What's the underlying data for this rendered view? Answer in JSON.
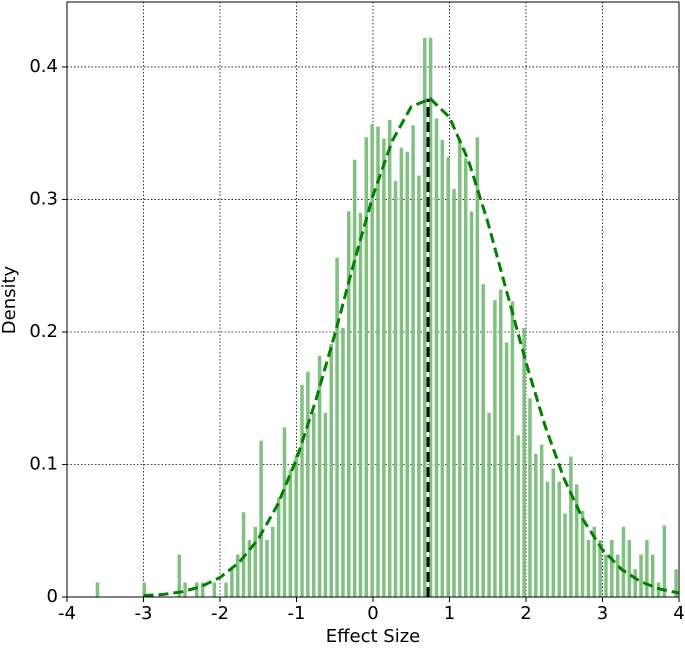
{
  "chart_data": {
    "type": "histogram",
    "xlabel": "Effect Size",
    "ylabel": "Density",
    "bins": [
      -3.64,
      -3.564,
      -3.487,
      -3.411,
      -3.334,
      -3.258,
      -3.182,
      -3.105,
      -3.029,
      -2.952,
      -2.876,
      -2.8,
      -2.723,
      -2.647,
      -2.57,
      -2.494,
      -2.418,
      -2.341,
      -2.265,
      -2.188,
      -2.112,
      -2.036,
      -1.959,
      -1.883,
      -1.806,
      -1.73,
      -1.654,
      -1.577,
      -1.501,
      -1.424,
      -1.348,
      -1.272,
      -1.195,
      -1.119,
      -1.042,
      -0.966,
      -0.89,
      -0.813,
      -0.737,
      -0.66,
      -0.584,
      -0.508,
      -0.431,
      -0.355,
      -0.278,
      -0.202,
      -0.126,
      -0.049,
      0.027,
      0.104,
      0.18,
      0.256,
      0.333,
      0.409,
      0.486,
      0.562,
      0.638,
      0.715,
      0.791,
      0.868,
      0.944,
      1.02,
      1.097,
      1.173,
      1.25,
      1.326,
      1.402,
      1.479,
      1.555,
      1.632,
      1.708,
      1.784,
      1.861,
      1.937,
      2.014,
      2.09,
      2.166,
      2.243,
      2.319,
      2.396,
      2.472,
      2.548,
      2.625,
      2.701,
      2.778,
      2.854,
      2.93,
      3.007,
      3.083,
      3.16,
      3.236,
      3.312,
      3.389,
      3.465,
      3.542,
      3.618,
      3.694,
      3.771,
      3.847,
      3.924,
      4.0
    ],
    "values": [
      0.011,
      0,
      0,
      0,
      0,
      0,
      0,
      0,
      0.011,
      0,
      0,
      0,
      0,
      0,
      0.032,
      0.011,
      0,
      0.011,
      0.011,
      0,
      0.011,
      0,
      0.011,
      0.021,
      0.032,
      0.064,
      0.043,
      0.053,
      0.118,
      0.043,
      0.053,
      0.075,
      0.128,
      0.096,
      0.107,
      0.16,
      0.17,
      0.139,
      0.182,
      0.139,
      0.191,
      0.256,
      0.203,
      0.291,
      0.33,
      0.29,
      0.347,
      0.357,
      0.355,
      0.346,
      0.36,
      0.314,
      0.339,
      0.336,
      0.356,
      0.318,
      0.422,
      0.422,
      0.361,
      0.345,
      0.332,
      0.308,
      0.346,
      0.331,
      0.291,
      0.347,
      0.236,
      0.139,
      0.224,
      0.232,
      0.192,
      0.223,
      0.122,
      0.203,
      0.15,
      0.108,
      0.115,
      0.087,
      0.097,
      0.087,
      0.063,
      0.106,
      0.085,
      0.065,
      0.043,
      0.053,
      0.043,
      0.032,
      0.043,
      0.032,
      0.053,
      0.043,
      0.021,
      0.032,
      0.043,
      0.032,
      0.011,
      0.054,
      0,
      0.021
    ],
    "color": "#80c080",
    "curve": {
      "color": "#008000",
      "x": [
        -3,
        -2.75,
        -2.5,
        -2.25,
        -2,
        -1.75,
        -1.5,
        -1.25,
        -1,
        -0.75,
        -0.5,
        -0.25,
        0,
        0.25,
        0.5,
        0.75,
        1,
        1.25,
        1.5,
        1.75,
        2,
        2.25,
        2.5,
        2.75,
        3,
        3.25,
        3.5,
        3.75,
        4
      ],
      "y": [
        0.001,
        0.0019,
        0.0039,
        0.0078,
        0.0147,
        0.0261,
        0.0437,
        0.0693,
        0.104,
        0.148,
        0.198,
        0.252,
        0.303,
        0.344,
        0.37,
        0.376,
        0.362,
        0.329,
        0.283,
        0.23,
        0.177,
        0.129,
        0.089,
        0.058,
        0.0357,
        0.0208,
        0.0115,
        0.006,
        0.003
      ]
    },
    "mean_line": {
      "x": 0.72,
      "top": 0.376,
      "color": "#000000"
    },
    "xlim": [
      -4,
      4
    ],
    "ylim": [
      0,
      0.449
    ],
    "xticks": [
      -4,
      -3,
      -2,
      -1,
      0,
      1,
      2,
      3,
      4
    ],
    "yticks": [
      0,
      0.1,
      0.2,
      0.3,
      0.4
    ],
    "grid": true
  }
}
